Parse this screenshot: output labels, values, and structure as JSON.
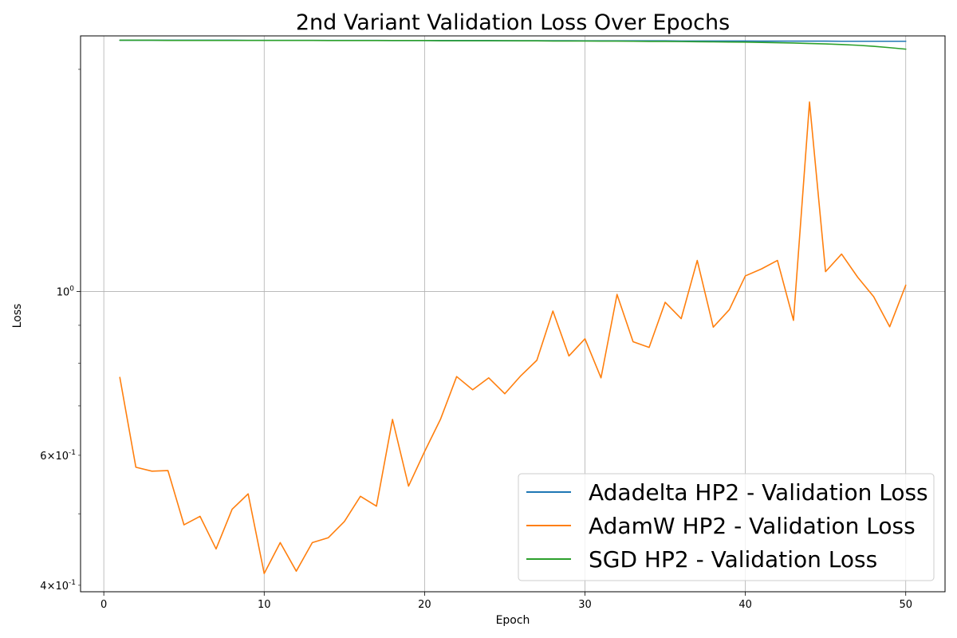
{
  "chart_data": {
    "type": "line",
    "title": "2nd Variant Validation Loss Over Epochs",
    "xlabel": "Epoch",
    "ylabel": "Loss",
    "x_scale": "linear",
    "y_scale": "log",
    "xlim": [
      -1.45,
      52.45
    ],
    "ylim": [
      0.392,
      2.22
    ],
    "grid": true,
    "legend_placement": "lower-right",
    "x_ticks": [
      {
        "value": 0,
        "label": "0"
      },
      {
        "value": 10,
        "label": "10"
      },
      {
        "value": 20,
        "label": "20"
      },
      {
        "value": 30,
        "label": "30"
      },
      {
        "value": 40,
        "label": "40"
      },
      {
        "value": 50,
        "label": "50"
      }
    ],
    "y_major_ticks": [
      {
        "value": 1.0,
        "label": "10^0"
      }
    ],
    "y_minor_ticks": [
      {
        "value": 0.4,
        "label": "4×10^-1"
      },
      {
        "value": 0.6,
        "label": "6×10^-1"
      }
    ],
    "y_unlabeled_minor_ticks": [
      0.5,
      0.7,
      0.8,
      0.9,
      2.0
    ],
    "x": [
      1,
      2,
      3,
      4,
      5,
      6,
      7,
      8,
      9,
      10,
      11,
      12,
      13,
      14,
      15,
      16,
      17,
      18,
      19,
      20,
      21,
      22,
      23,
      24,
      25,
      26,
      27,
      28,
      29,
      30,
      31,
      32,
      33,
      34,
      35,
      36,
      37,
      38,
      39,
      40,
      41,
      42,
      43,
      44,
      45,
      46,
      47,
      48,
      49,
      50
    ],
    "series": [
      {
        "name": "Adadelta HP2 - Validation Loss",
        "color": "#1f77b4",
        "values": [
          2.19,
          2.19,
          2.19,
          2.19,
          2.19,
          2.19,
          2.19,
          2.19,
          2.189,
          2.189,
          2.189,
          2.189,
          2.189,
          2.189,
          2.189,
          2.189,
          2.189,
          2.188,
          2.188,
          2.188,
          2.188,
          2.188,
          2.188,
          2.188,
          2.187,
          2.187,
          2.187,
          2.187,
          2.187,
          2.186,
          2.186,
          2.186,
          2.186,
          2.186,
          2.186,
          2.185,
          2.185,
          2.185,
          2.185,
          2.185,
          2.184,
          2.184,
          2.184,
          2.184,
          2.184,
          2.183,
          2.183,
          2.183,
          2.183,
          2.183
        ]
      },
      {
        "name": "AdamW HP2 - Validation Loss",
        "color": "#ff7f0e",
        "values": [
          0.765,
          0.578,
          0.571,
          0.572,
          0.483,
          0.496,
          0.448,
          0.507,
          0.532,
          0.415,
          0.457,
          0.418,
          0.457,
          0.464,
          0.488,
          0.528,
          0.512,
          0.671,
          0.545,
          0.607,
          0.672,
          0.767,
          0.736,
          0.764,
          0.727,
          0.769,
          0.807,
          0.941,
          0.818,
          0.863,
          0.764,
          0.991,
          0.855,
          0.84,
          0.967,
          0.919,
          1.102,
          0.895,
          0.945,
          1.05,
          1.073,
          1.102,
          0.914,
          1.806,
          1.064,
          1.124,
          1.046,
          0.984,
          0.896,
          1.02
        ]
      },
      {
        "name": "SGD HP2 - Validation Loss",
        "color": "#2ca02c",
        "values": [
          2.19,
          2.19,
          2.19,
          2.189,
          2.189,
          2.189,
          2.189,
          2.189,
          2.189,
          2.189,
          2.189,
          2.189,
          2.189,
          2.188,
          2.188,
          2.188,
          2.188,
          2.188,
          2.188,
          2.188,
          2.187,
          2.187,
          2.187,
          2.187,
          2.187,
          2.186,
          2.186,
          2.185,
          2.185,
          2.185,
          2.184,
          2.184,
          2.183,
          2.182,
          2.182,
          2.181,
          2.18,
          2.179,
          2.178,
          2.177,
          2.175,
          2.173,
          2.171,
          2.168,
          2.165,
          2.161,
          2.156,
          2.149,
          2.14,
          2.13
        ]
      }
    ]
  }
}
